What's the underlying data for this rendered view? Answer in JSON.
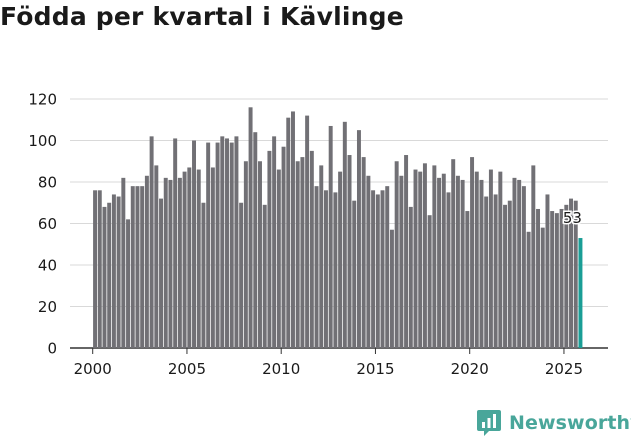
{
  "title": "Födda per kvartal i Kävlinge",
  "brand": {
    "name": "Newsworthy",
    "logo_icon": "bar-chart-bubble-icon",
    "color": "#49a69a"
  },
  "chart_data": {
    "type": "bar",
    "title": "Födda per kvartal i Kävlinge",
    "xlabel": "",
    "ylabel": "",
    "ylim": [
      0,
      120
    ],
    "y_ticks": [
      0,
      20,
      40,
      60,
      80,
      100,
      120
    ],
    "x_ticks": [
      2000,
      2005,
      2010,
      2015,
      2020,
      2025
    ],
    "grid": true,
    "x_start_quarter": "2000 Q1",
    "values": [
      76,
      76,
      68,
      70,
      74,
      73,
      82,
      62,
      78,
      78,
      78,
      83,
      102,
      88,
      72,
      82,
      81,
      101,
      82,
      85,
      87,
      100,
      86,
      70,
      99,
      87,
      99,
      102,
      101,
      99,
      102,
      70,
      90,
      116,
      104,
      90,
      69,
      95,
      102,
      86,
      97,
      111,
      114,
      90,
      92,
      112,
      95,
      78,
      88,
      76,
      107,
      75,
      85,
      109,
      93,
      71,
      105,
      92,
      83,
      76,
      74,
      76,
      78,
      57,
      90,
      83,
      93,
      68,
      86,
      85,
      89,
      64,
      88,
      82,
      84,
      75,
      91,
      83,
      81,
      66,
      92,
      85,
      81,
      73,
      86,
      74,
      85,
      69,
      71,
      82,
      81,
      78,
      56,
      88,
      67,
      58,
      74,
      66,
      65,
      67,
      69,
      72,
      71,
      53
    ],
    "highlight": {
      "index": 103,
      "label": "53",
      "color": "#1a9e96"
    },
    "bar_color": "#717075"
  }
}
